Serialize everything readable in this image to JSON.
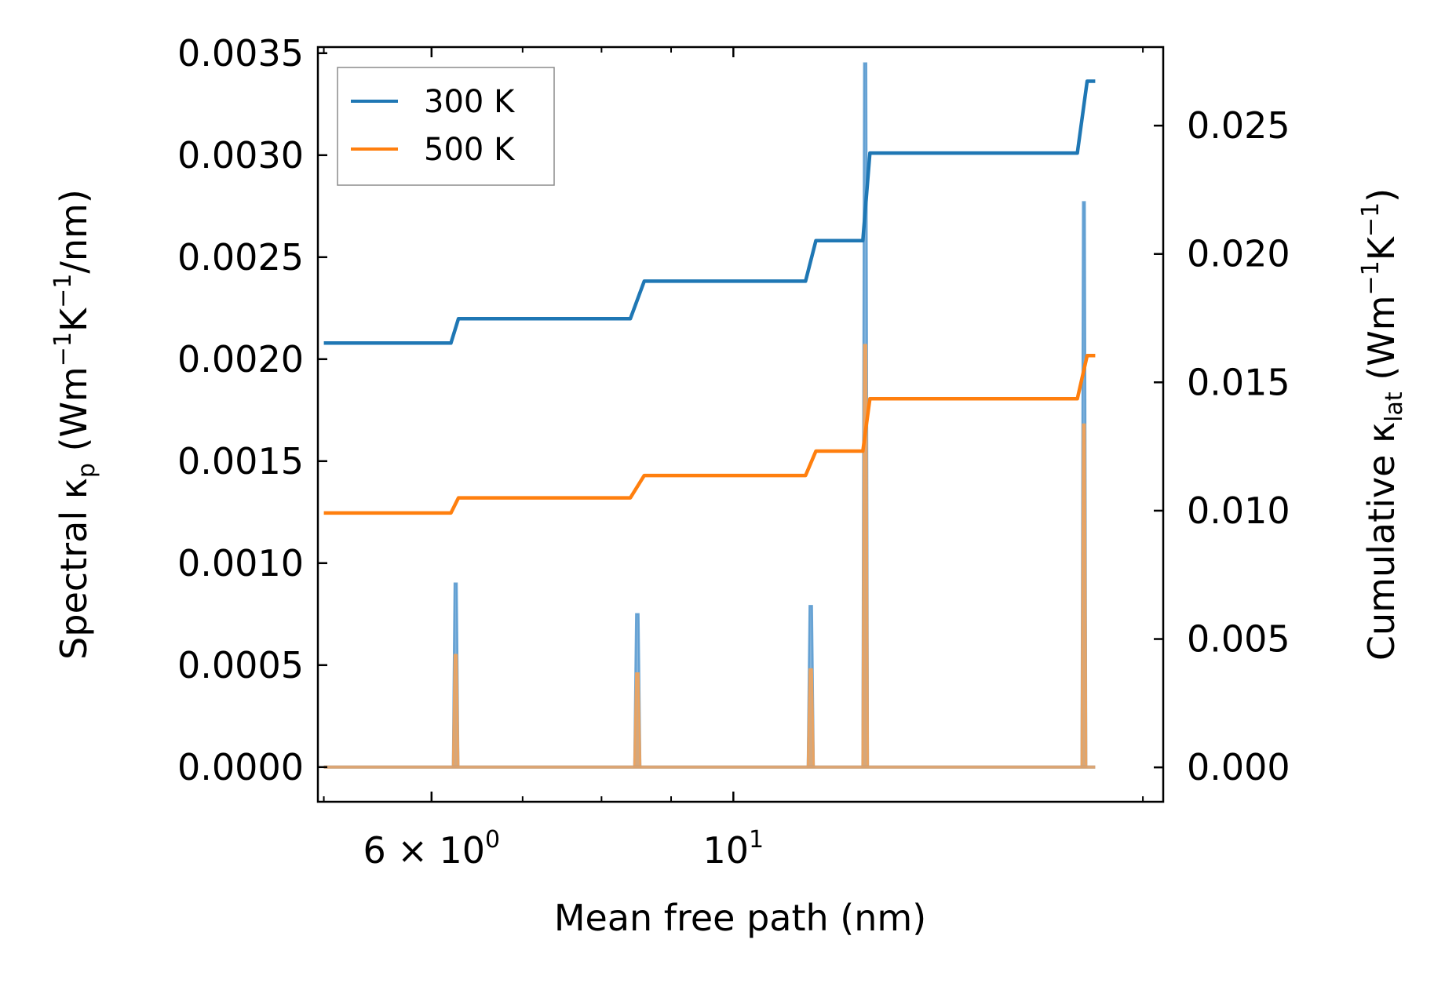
{
  "chart_data": {
    "type": "line",
    "xlabel": "Mean free path (nm)",
    "xscale": "log",
    "xlim": [
      4.95,
      20.7
    ],
    "x_ticks": [
      {
        "value": 6,
        "base": "6 × 10",
        "exp": "0"
      },
      {
        "value": 10,
        "base": "10",
        "exp": "1"
      }
    ],
    "x_minor_ticks": [
      5,
      7,
      8,
      9,
      20
    ],
    "ylabel_left": {
      "prefix": "Spectral κ",
      "sub": "p",
      "rest": " (Wm",
      "sup1": "−1",
      "mid": "K",
      "sup2": "−1",
      "end": "/nm)"
    },
    "ylabel_right": {
      "prefix": "Cumulative κ",
      "sub": "lat",
      "rest": " (Wm",
      "sup1": "−1",
      "mid": "K",
      "sup2": "−1",
      "end": ")"
    },
    "ylim_left": [
      -0.00017,
      0.00353
    ],
    "ylim_right": [
      -0.00134,
      0.02806
    ],
    "y_ticks_left": [
      "0.0000",
      "0.0005",
      "0.0010",
      "0.0015",
      "0.0020",
      "0.0025",
      "0.0030",
      "0.0035"
    ],
    "y_ticks_right": [
      "0.000",
      "0.005",
      "0.010",
      "0.015",
      "0.020",
      "0.025"
    ],
    "legend": {
      "location": "upper-left",
      "entries": [
        "300 K",
        "500 K"
      ]
    },
    "colors": {
      "series_300K": "#1f77b4",
      "series_500K": "#ff7f0e",
      "fill_300K": "#5b9bd0",
      "fill_500K": "#f2a35a"
    },
    "spectral_series": [
      {
        "name": "300 K",
        "peaks": [
          {
            "x": 6.25,
            "width": 0.06,
            "value": 0.0009
          },
          {
            "x": 8.5,
            "width": 0.09,
            "value": 0.00075
          },
          {
            "x": 11.4,
            "width": 0.12,
            "value": 0.00079
          },
          {
            "x": 12.5,
            "width": 0.12,
            "value": 0.00345
          },
          {
            "x": 18.1,
            "width": 0.15,
            "value": 0.00277
          }
        ]
      },
      {
        "name": "500 K",
        "peaks": [
          {
            "x": 6.25,
            "width": 0.06,
            "value": 0.00055
          },
          {
            "x": 8.5,
            "width": 0.09,
            "value": 0.00046
          },
          {
            "x": 11.4,
            "width": 0.12,
            "value": 0.00048
          },
          {
            "x": 12.5,
            "width": 0.12,
            "value": 0.00207
          },
          {
            "x": 18.1,
            "width": 0.15,
            "value": 0.00168
          }
        ]
      }
    ],
    "cumulative_series": [
      {
        "name": "300 K",
        "points": [
          [
            5.0,
            0.01653
          ],
          [
            6.2,
            0.01653
          ],
          [
            6.28,
            0.01748
          ],
          [
            8.4,
            0.01748
          ],
          [
            8.6,
            0.01894
          ],
          [
            11.3,
            0.01894
          ],
          [
            11.5,
            0.02052
          ],
          [
            12.45,
            0.02052
          ],
          [
            12.6,
            0.02393
          ],
          [
            17.9,
            0.02393
          ],
          [
            18.2,
            0.02673
          ],
          [
            18.45,
            0.02673
          ]
        ]
      },
      {
        "name": "500 K",
        "points": [
          [
            5.0,
            0.00991
          ],
          [
            6.2,
            0.00991
          ],
          [
            6.28,
            0.0105
          ],
          [
            8.4,
            0.0105
          ],
          [
            8.6,
            0.01137
          ],
          [
            11.3,
            0.01137
          ],
          [
            11.5,
            0.01232
          ],
          [
            12.45,
            0.01232
          ],
          [
            12.6,
            0.01436
          ],
          [
            17.9,
            0.01436
          ],
          [
            18.2,
            0.01604
          ],
          [
            18.45,
            0.01604
          ]
        ]
      }
    ]
  }
}
